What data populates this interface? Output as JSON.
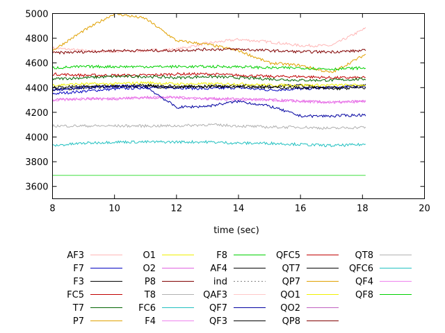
{
  "chart_data": {
    "type": "line",
    "xlabel": "time (sec)",
    "ylabel": "",
    "xlim": [
      8,
      20
    ],
    "ylim": [
      3500,
      5000
    ],
    "x_ticks": [
      "8",
      "10",
      "12",
      "14",
      "16",
      "18",
      "20"
    ],
    "y_ticks": [
      "3600",
      "3800",
      "4000",
      "4200",
      "4400",
      "4600",
      "4800",
      "5000"
    ],
    "x_tick_values": [
      8,
      10,
      12,
      14,
      16,
      18,
      20
    ],
    "y_tick_values": [
      3600,
      3800,
      4000,
      4200,
      4400,
      4600,
      4800,
      5000
    ],
    "grid": false,
    "legend_position": "bottom",
    "x": [
      8.0,
      9.0,
      10.0,
      11.0,
      12.0,
      13.0,
      14.0,
      15.0,
      16.0,
      17.0,
      18.1
    ],
    "series": [
      {
        "name": "AF3",
        "color": "#ffb6b6",
        "dash": "",
        "values": [
          4720,
          4700,
          4690,
          4700,
          4710,
          4760,
          4790,
          4770,
          4740,
          4740,
          4880
        ]
      },
      {
        "name": "F7",
        "color": "#0000c0",
        "dash": "",
        "values": [
          4350,
          4370,
          4390,
          4400,
          4400,
          4390,
          4400,
          4380,
          4390,
          4400,
          4410
        ]
      },
      {
        "name": "F3",
        "color": "#000000",
        "dash": "",
        "values": [
          4380,
          4400,
          4410,
          4410,
          4400,
          4410,
          4420,
          4410,
          4420,
          4400,
          4420
        ]
      },
      {
        "name": "FC5",
        "color": "#c00000",
        "dash": "",
        "values": [
          4510,
          4500,
          4500,
          4500,
          4510,
          4510,
          4500,
          4490,
          4490,
          4480,
          4480
        ]
      },
      {
        "name": "T7",
        "color": "#006400",
        "dash": "",
        "values": [
          4470,
          4480,
          4490,
          4490,
          4480,
          4490,
          4480,
          4470,
          4460,
          4460,
          4470
        ]
      },
      {
        "name": "P7",
        "color": "#e0a000",
        "dash": "",
        "values": [
          4700,
          4860,
          5000,
          4960,
          4780,
          4750,
          4700,
          4600,
          4580,
          4520,
          4670
        ]
      },
      {
        "name": "O1",
        "color": "#f0f000",
        "dash": "",
        "values": [
          4420,
          4430,
          4430,
          4440,
          4430,
          4430,
          4430,
          4420,
          4420,
          4420,
          4420
        ]
      },
      {
        "name": "O2",
        "color": "#e060e0",
        "dash": "",
        "values": [
          4300,
          4310,
          4310,
          4320,
          4320,
          4310,
          4310,
          4300,
          4290,
          4280,
          4290
        ]
      },
      {
        "name": "P8",
        "color": "#800000",
        "dash": "",
        "values": [
          4680,
          4690,
          4700,
          4700,
          4700,
          4710,
          4710,
          4700,
          4690,
          4690,
          4700
        ]
      },
      {
        "name": "T8",
        "color": "#b0b0b0",
        "dash": "",
        "values": [
          4090,
          4090,
          4090,
          4090,
          4090,
          4100,
          4090,
          4080,
          4080,
          4070,
          4080
        ]
      },
      {
        "name": "FC6",
        "color": "#20c0c0",
        "dash": "",
        "values": [
          3930,
          3950,
          3960,
          3960,
          3960,
          3960,
          3950,
          3950,
          3940,
          3930,
          3940
        ]
      },
      {
        "name": "F4",
        "color": "#ee82ee",
        "dash": "",
        "values": [
          4300,
          4310,
          4310,
          4320,
          4320,
          4310,
          4300,
          4300,
          4290,
          4280,
          4290
        ]
      },
      {
        "name": "F8",
        "color": "#00d000",
        "dash": "",
        "values": [
          4560,
          4570,
          4570,
          4570,
          4570,
          4570,
          4570,
          4560,
          4560,
          4550,
          4560
        ]
      },
      {
        "name": "AF4",
        "color": "#000000",
        "dash": "",
        "values": [
          4400,
          4410,
          4410,
          4420,
          4410,
          4410,
          4410,
          4400,
          4400,
          4390,
          4400
        ]
      },
      {
        "name": "ind",
        "color": "#808080",
        "dash": "2,3",
        "values": [
          null,
          null,
          null,
          null,
          null,
          null,
          null,
          null,
          null,
          null,
          null
        ]
      },
      {
        "name": "QAF3",
        "color": "#ffc8c8",
        "dash": "",
        "values": [
          null,
          null,
          null,
          null,
          null,
          null,
          null,
          null,
          null,
          null,
          null
        ]
      },
      {
        "name": "QF7",
        "color": "#0000a0",
        "dash": "",
        "values": [
          4380,
          4400,
          4410,
          4410,
          4240,
          4250,
          4290,
          4250,
          4170,
          4170,
          4180
        ]
      },
      {
        "name": "QF3",
        "color": "#000000",
        "dash": "",
        "values": [
          null,
          null,
          null,
          null,
          null,
          null,
          null,
          null,
          null,
          null,
          null
        ]
      },
      {
        "name": "QFC5",
        "color": "#c00000",
        "dash": "",
        "values": [
          null,
          null,
          null,
          null,
          null,
          null,
          null,
          null,
          null,
          null,
          null
        ]
      },
      {
        "name": "QT7",
        "color": "#000000",
        "dash": "",
        "values": [
          null,
          null,
          null,
          null,
          null,
          null,
          null,
          null,
          null,
          null,
          null
        ]
      },
      {
        "name": "QP7",
        "color": "#e0a000",
        "dash": "",
        "values": [
          null,
          null,
          null,
          null,
          null,
          null,
          null,
          null,
          null,
          null,
          null
        ]
      },
      {
        "name": "QO1",
        "color": "#f0f000",
        "dash": "",
        "values": [
          null,
          null,
          null,
          null,
          null,
          null,
          null,
          null,
          null,
          null,
          null
        ]
      },
      {
        "name": "QO2",
        "color": "#c060c0",
        "dash": "",
        "values": [
          null,
          null,
          null,
          null,
          null,
          null,
          null,
          null,
          null,
          null,
          null
        ]
      },
      {
        "name": "QP8",
        "color": "#800000",
        "dash": "",
        "values": [
          null,
          null,
          null,
          null,
          null,
          null,
          null,
          null,
          null,
          null,
          null
        ]
      },
      {
        "name": "QT8",
        "color": "#b0b0b0",
        "dash": "",
        "values": [
          null,
          null,
          null,
          null,
          null,
          null,
          null,
          null,
          null,
          null,
          null
        ]
      },
      {
        "name": "QFC6",
        "color": "#20c0c0",
        "dash": "",
        "values": [
          null,
          null,
          null,
          null,
          null,
          null,
          null,
          null,
          null,
          null,
          null
        ]
      },
      {
        "name": "QF4",
        "color": "#ee82ee",
        "dash": "",
        "values": [
          null,
          null,
          null,
          null,
          null,
          null,
          null,
          null,
          null,
          null,
          null
        ]
      },
      {
        "name": "QF8",
        "color": "#00d000",
        "dash": "",
        "values": [
          null,
          null,
          null,
          null,
          null,
          null,
          null,
          null,
          null,
          null,
          null
        ]
      },
      {
        "name": "",
        "color": "#40e040",
        "dash": "",
        "values": [
          3690,
          3690,
          3690,
          3690,
          3690,
          3690,
          3690,
          3690,
          3690,
          3690,
          3690
        ]
      }
    ]
  }
}
